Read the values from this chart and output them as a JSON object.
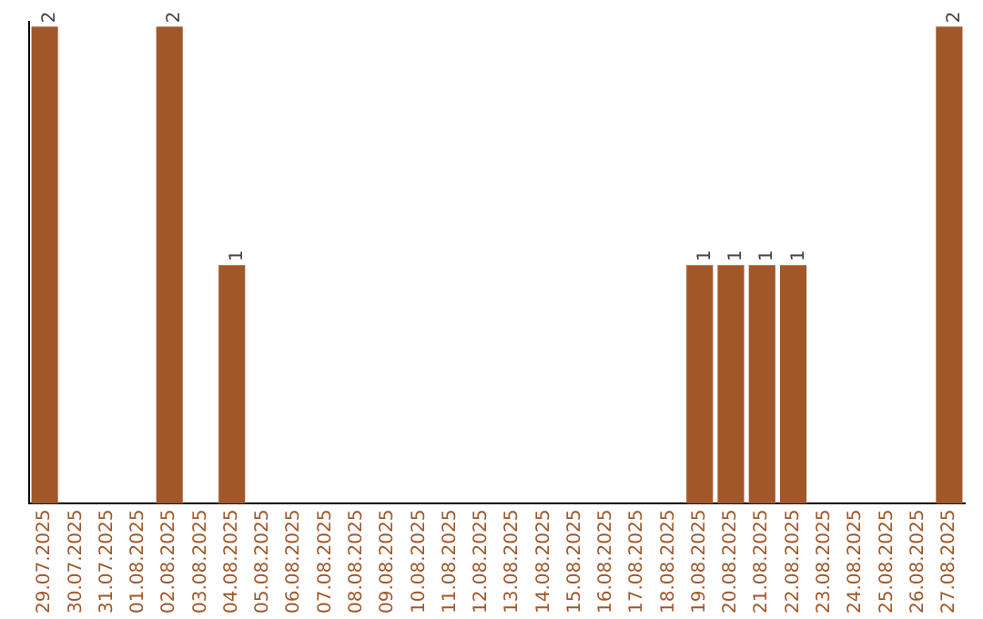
{
  "chart_data": {
    "type": "bar",
    "categories": [
      "29.07.2025",
      "30.07.2025",
      "31.07.2025",
      "01.08.2025",
      "02.08.2025",
      "03.08.2025",
      "04.08.2025",
      "05.08.2025",
      "06.08.2025",
      "07.08.2025",
      "08.08.2025",
      "09.08.2025",
      "10.08.2025",
      "11.08.2025",
      "12.08.2025",
      "13.08.2025",
      "14.08.2025",
      "15.08.2025",
      "16.08.2025",
      "17.08.2025",
      "18.08.2025",
      "19.08.2025",
      "20.08.2025",
      "21.08.2025",
      "22.08.2025",
      "23.08.2025",
      "24.08.2025",
      "25.08.2025",
      "26.08.2025",
      "27.08.2025"
    ],
    "values": [
      2,
      0,
      0,
      0,
      2,
      0,
      1,
      0,
      0,
      0,
      0,
      0,
      0,
      0,
      0,
      0,
      0,
      0,
      0,
      0,
      0,
      1,
      1,
      1,
      1,
      0,
      0,
      0,
      0,
      2
    ],
    "value_labels": [
      "2",
      null,
      null,
      null,
      "2",
      null,
      "1",
      null,
      null,
      null,
      null,
      null,
      null,
      null,
      null,
      null,
      null,
      null,
      null,
      null,
      null,
      "1",
      "1",
      "1",
      "1",
      null,
      null,
      null,
      null,
      "2"
    ],
    "color": "#a0582b",
    "grid": false,
    "legend": false,
    "tick_labels": "x"
  }
}
